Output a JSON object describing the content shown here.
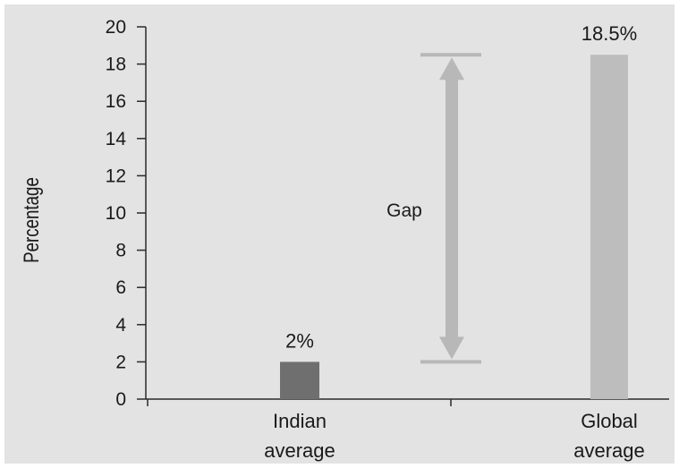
{
  "colors": {
    "background": "#e3e3e3",
    "axis": "#2a2a2a",
    "indian_bar": "#6f6f6f",
    "global_bar": "#bdbdbd",
    "gap_arrow": "#b8b8b8"
  },
  "chart_data": {
    "type": "bar",
    "title": "",
    "xlabel": "",
    "ylabel": "Percentage",
    "ylim": [
      0,
      20
    ],
    "y_ticks": [
      "0",
      "2",
      "4",
      "6",
      "8",
      "10",
      "12",
      "14",
      "16",
      "18",
      "20"
    ],
    "grid": false,
    "legend": "none",
    "categories": [
      [
        "Indian",
        "average"
      ],
      [
        "Global",
        "average"
      ]
    ],
    "values": [
      2,
      18.5
    ],
    "data_labels": [
      "2%",
      "18.5%"
    ],
    "annotations": [
      {
        "text": "Gap",
        "from": 2,
        "to": 18.5
      }
    ]
  }
}
